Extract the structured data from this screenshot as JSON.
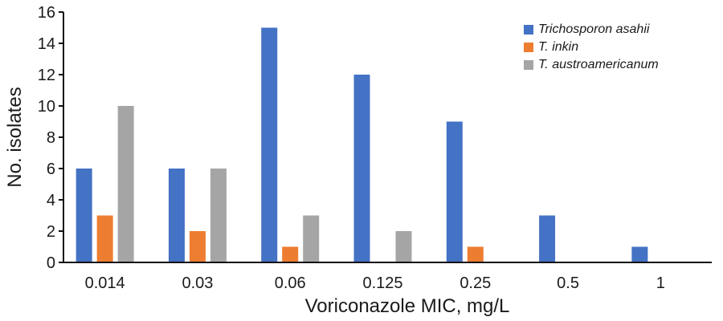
{
  "chart_data": {
    "type": "bar",
    "title": "",
    "xlabel": "Voriconazole MIC, mg/L",
    "ylabel": "No. isolates",
    "ylim": [
      0,
      16
    ],
    "yticks": [
      0,
      2,
      4,
      6,
      8,
      10,
      12,
      14,
      16
    ],
    "grid": false,
    "legend_position": "top-right",
    "categories": [
      "0.014",
      "0.03",
      "0.06",
      "0.125",
      "0.25",
      "0.5",
      "1"
    ],
    "series": [
      {
        "name": "Trichosporon asahii",
        "color": "#4472C4",
        "values": [
          6,
          6,
          15,
          12,
          9,
          3,
          1
        ]
      },
      {
        "name": "T. inkin",
        "color": "#ED7D31",
        "values": [
          3,
          2,
          1,
          0,
          1,
          0,
          0
        ]
      },
      {
        "name": "T. austroamericanum",
        "color": "#A5A5A5",
        "values": [
          10,
          6,
          3,
          2,
          0,
          0,
          0
        ]
      }
    ]
  },
  "legend": {
    "items": [
      {
        "label": "Trichosporon asahii",
        "color": "#4472C4"
      },
      {
        "label": "T. inkin",
        "color": "#ED7D31"
      },
      {
        "label": "T. austroamericanum",
        "color": "#A5A5A5"
      }
    ]
  }
}
